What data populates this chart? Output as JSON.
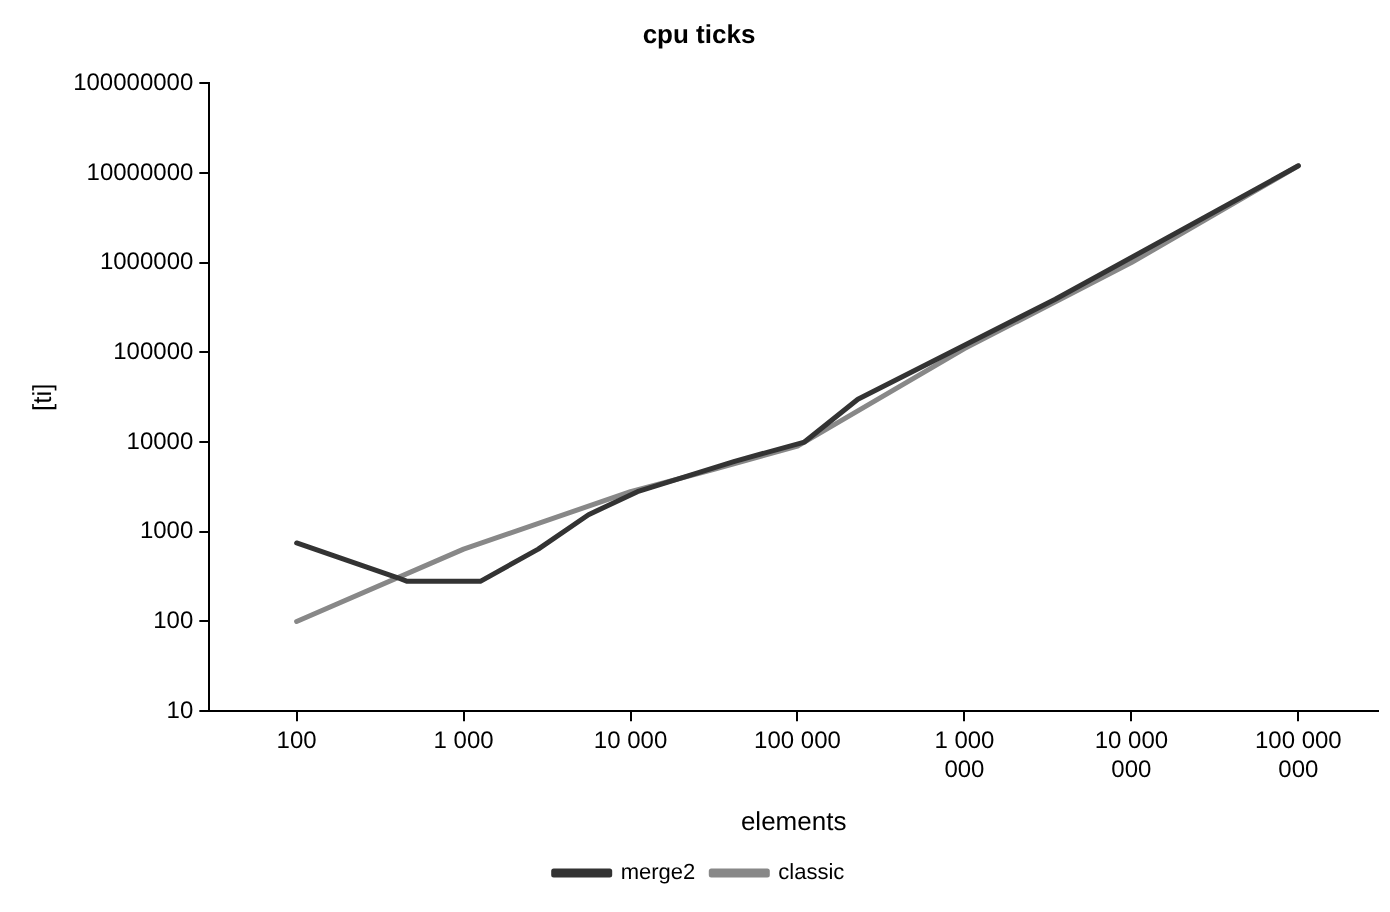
{
  "chart_data": {
    "type": "line",
    "title": "cpu ticks",
    "xlabel": "elements",
    "ylabel": "[ti]",
    "log": "xy",
    "xlim": [
      30,
      300000000
    ],
    "xticks": [
      {
        "value": 100,
        "label": "100"
      },
      {
        "value": 1000,
        "label": "1 000"
      },
      {
        "value": 10000,
        "label": "10 000"
      },
      {
        "value": 100000,
        "label": "100 000"
      },
      {
        "value": 1000000,
        "label": "1 000 000"
      },
      {
        "value": 10000000,
        "label": "10 000 000"
      },
      {
        "value": 100000000,
        "label": "100 000 000"
      }
    ],
    "ylim": [
      10,
      100000000
    ],
    "yticks": [
      10,
      100,
      1000,
      10000,
      100000,
      1000000,
      10000000,
      100000000
    ],
    "grid": false,
    "legend": "bottom",
    "marker": "none",
    "line_style": "solid",
    "series": [
      {
        "name": "merge2",
        "color": "#333333",
        "x": [
          100,
          400,
          460,
          1260,
          2800,
          5600,
          11000,
          42000,
          110000,
          230000,
          1000000,
          3500000,
          100000000
        ],
        "values": [
          750,
          309,
          280,
          280,
          640,
          1550,
          2800,
          6100,
          10000,
          30000,
          120000,
          390000,
          12000000
        ]
      },
      {
        "name": "classic",
        "color": "#888888",
        "x": [
          100,
          1000,
          10000,
          32000,
          100000,
          1000000,
          10000000,
          100000000
        ],
        "values": [
          100,
          640,
          2800,
          5000,
          9000,
          110000,
          1000000,
          12000000
        ]
      }
    ]
  }
}
